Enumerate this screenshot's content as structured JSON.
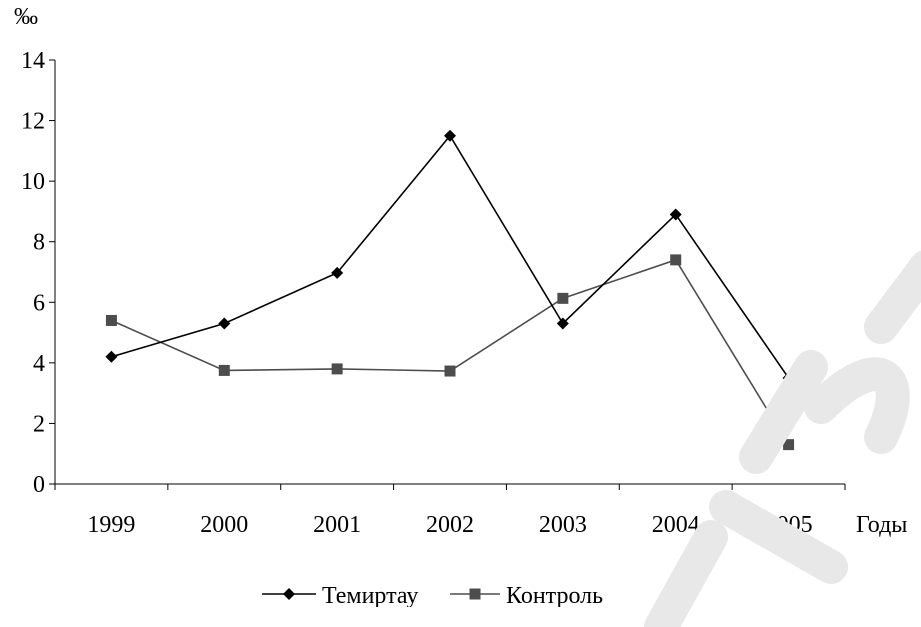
{
  "chart_data": {
    "type": "line",
    "categories": [
      "1999",
      "2000",
      "2001",
      "2002",
      "2003",
      "2004",
      "2005"
    ],
    "series": [
      {
        "name": "Темиртау",
        "values": [
          4.2,
          5.3,
          6.97,
          11.5,
          5.3,
          8.9,
          3.5
        ],
        "color": "#000000",
        "marker": "diamond"
      },
      {
        "name": "Контроль",
        "values": [
          5.4,
          3.75,
          3.8,
          3.73,
          6.13,
          7.4,
          1.3
        ],
        "color": "#4d4d4d",
        "marker": "square"
      }
    ],
    "title": "",
    "ylabel": "‰",
    "xlabel": "Годы",
    "ylim": [
      0,
      14
    ],
    "yticks": [
      "0",
      "2",
      "4",
      "6",
      "8",
      "10",
      "12",
      "14"
    ],
    "grid": false,
    "legend": "bottom"
  }
}
